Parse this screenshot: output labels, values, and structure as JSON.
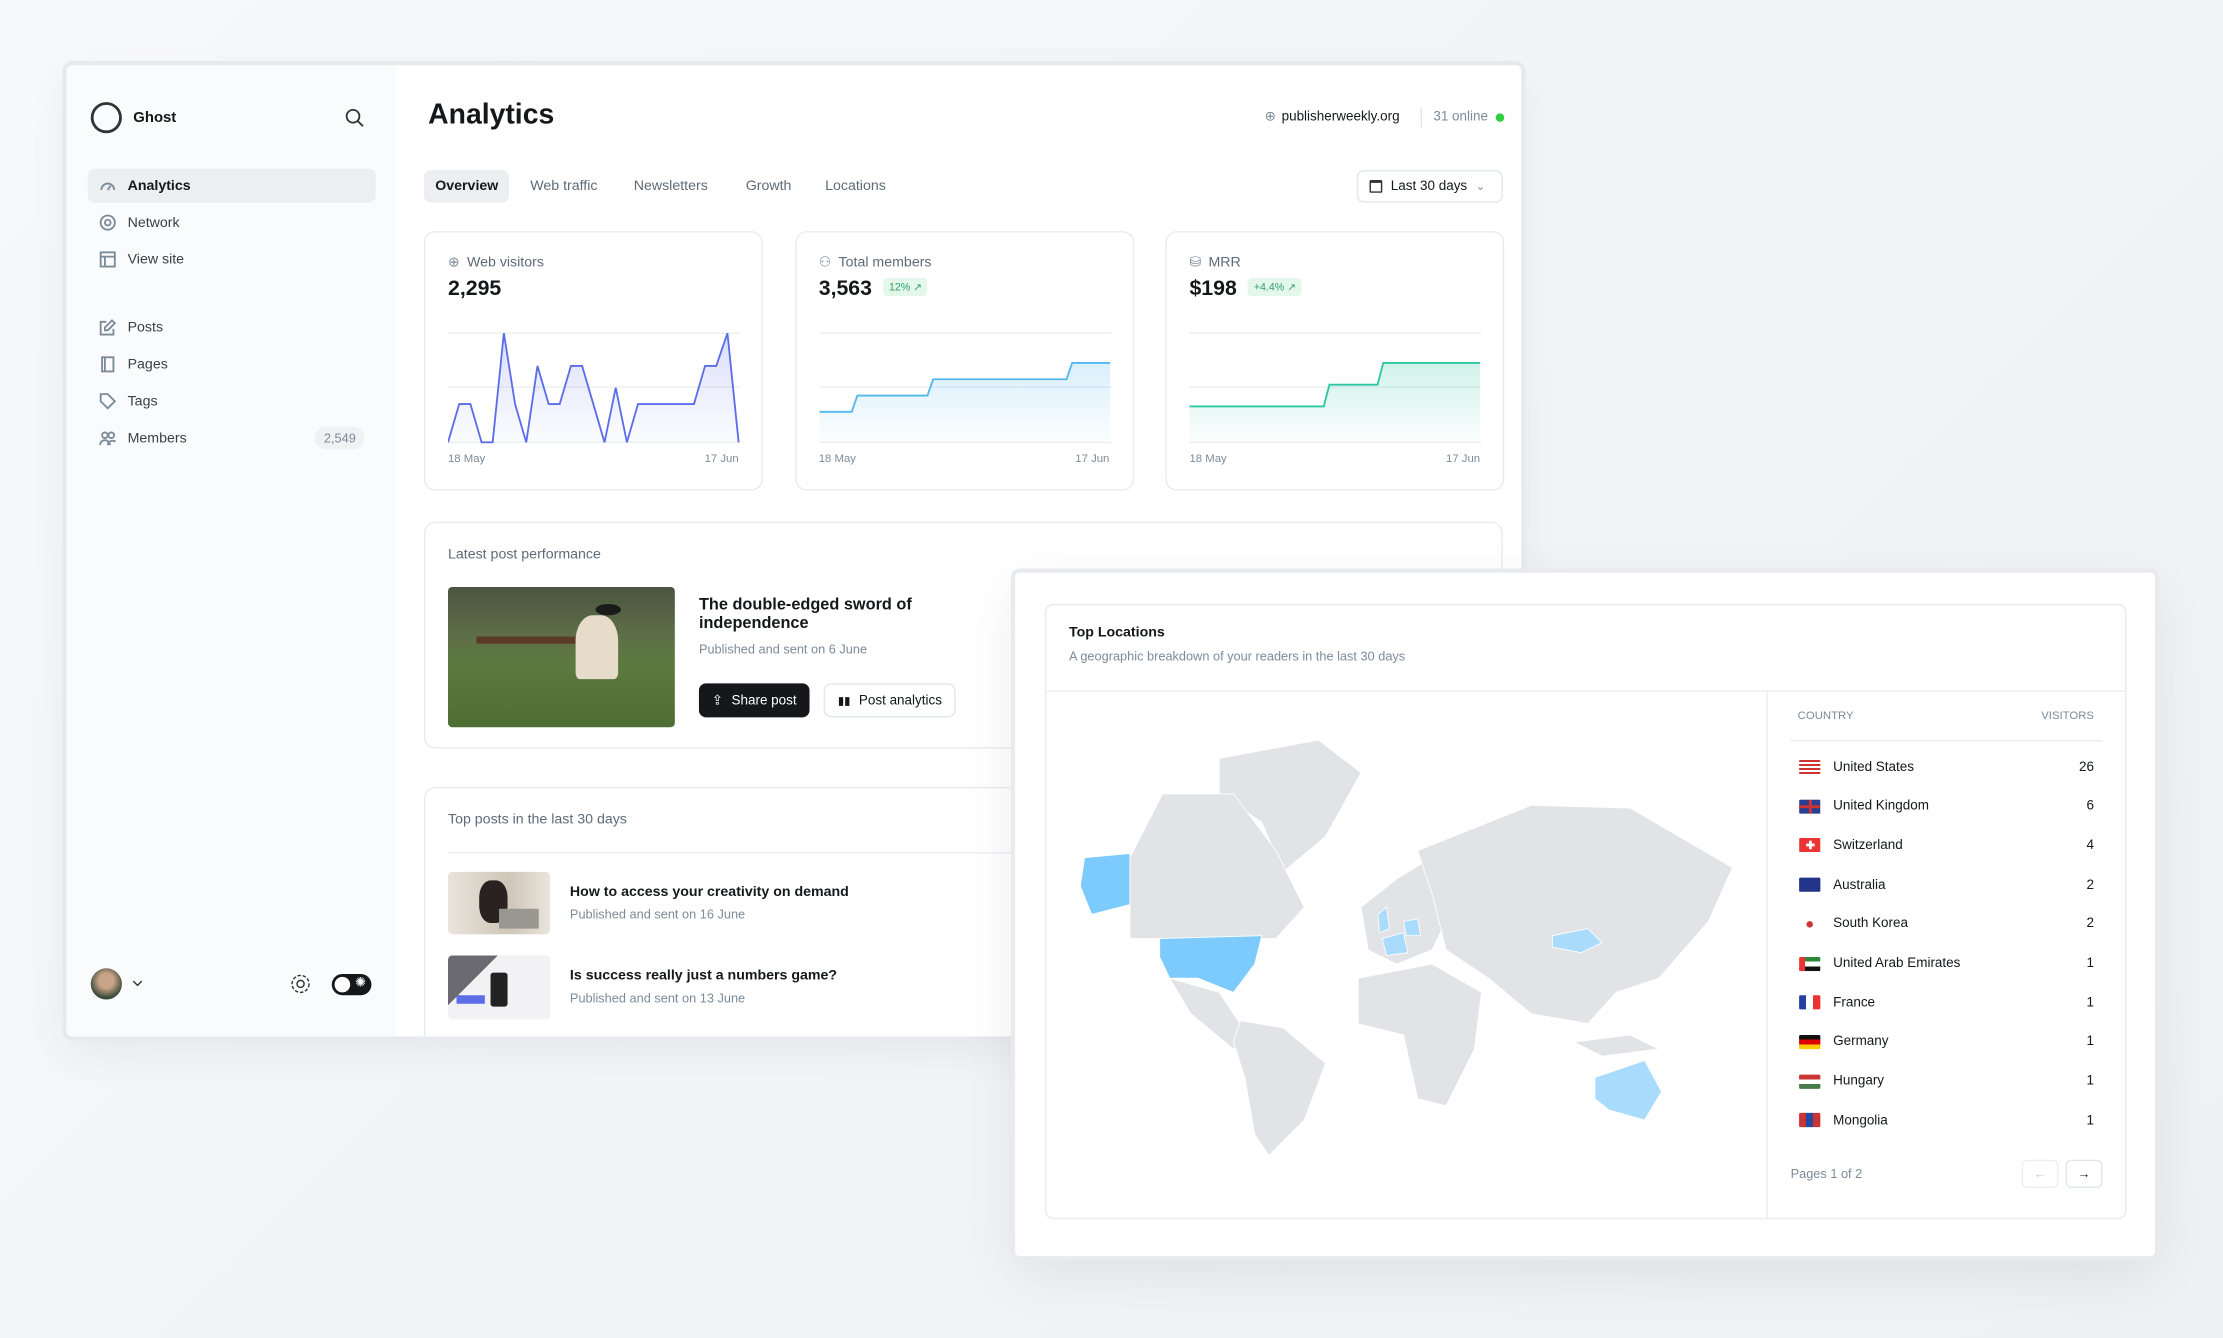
{
  "sidebar": {
    "brand": "Ghost",
    "items": [
      {
        "label": "Analytics",
        "icon": "gauge-icon",
        "active": true
      },
      {
        "label": "Network",
        "icon": "network-icon"
      },
      {
        "label": "View site",
        "icon": "layout-icon"
      },
      {
        "label": "Posts",
        "icon": "edit-icon"
      },
      {
        "label": "Pages",
        "icon": "page-icon"
      },
      {
        "label": "Tags",
        "icon": "tag-icon"
      },
      {
        "label": "Members",
        "icon": "members-icon",
        "count": "2,549"
      }
    ]
  },
  "header": {
    "title": "Analytics",
    "site": "publisherweekly.org",
    "online": "31 online",
    "online_color": "#30cf43"
  },
  "tabs": [
    {
      "label": "Overview",
      "active": true
    },
    {
      "label": "Web traffic"
    },
    {
      "label": "Newsletters"
    },
    {
      "label": "Growth"
    },
    {
      "label": "Locations"
    }
  ],
  "date_range": "Last 30 days",
  "kpis": [
    {
      "label": "Web visitors",
      "icon": "globe-icon",
      "value": "2,295",
      "badge": null,
      "color": "#5b6ee8"
    },
    {
      "label": "Total members",
      "icon": "user-icon",
      "value": "3,563",
      "badge": "12%",
      "color": "#54b8f0"
    },
    {
      "label": "MRR",
      "icon": "coins-icon",
      "value": "$198",
      "badge": "+4.4%",
      "color": "#2ec6a0"
    }
  ],
  "chart_data": [
    {
      "type": "area",
      "series": [
        {
          "values": [
            0,
            35,
            35,
            0,
            0,
            100,
            35,
            0,
            70,
            35,
            35,
            70,
            70,
            35,
            0,
            50,
            0,
            35,
            35,
            35,
            35,
            35,
            35,
            70,
            70,
            100,
            0
          ]
        }
      ],
      "x_ticks": [
        "18 May",
        "17 Jun"
      ],
      "grid": true
    },
    {
      "type": "area",
      "series": [
        {
          "values": [
            3,
            3,
            3,
            4,
            4,
            4,
            4,
            4,
            4,
            5,
            5,
            5,
            5,
            5,
            5,
            5,
            5,
            5,
            5,
            5,
            6,
            6,
            6,
            6
          ]
        }
      ],
      "x_ticks": [
        "18 May",
        "17 Jun"
      ],
      "grid": true
    },
    {
      "type": "area",
      "series": [
        {
          "values": [
            3,
            3,
            3,
            3,
            3,
            3,
            3,
            3,
            3,
            3,
            3,
            3,
            3,
            4,
            4,
            4,
            4,
            4,
            5,
            5,
            5,
            5,
            5,
            5,
            5,
            5,
            5,
            5
          ]
        }
      ],
      "x_ticks": [
        "18 May",
        "17 Jun"
      ],
      "grid": true
    }
  ],
  "latest": {
    "heading": "Latest post performance",
    "title": "The double-edged sword of independence",
    "meta": "Published and sent on 6 June",
    "share": "Share post",
    "analytics": "Post analytics"
  },
  "top_posts": {
    "heading": "Top posts in the last 30 days",
    "items": [
      {
        "title": "How to access your creativity on demand",
        "meta": "Published and sent on 16 June"
      },
      {
        "title": "Is success really just a numbers game?",
        "meta": "Published and sent on 13 June"
      }
    ]
  },
  "locations": {
    "title": "Top Locations",
    "subtitle": "A geographic breakdown of your readers in the last 30 days",
    "col_country": "COUNTRY",
    "col_visitors": "VISITORS",
    "highlight_color": "#7ccbfc",
    "rows": [
      {
        "country": "United States",
        "visitors": "26",
        "flag": "flag-us"
      },
      {
        "country": "United Kingdom",
        "visitors": "6",
        "flag": "flag-gb"
      },
      {
        "country": "Switzerland",
        "visitors": "4",
        "flag": "flag-ch"
      },
      {
        "country": "Australia",
        "visitors": "2",
        "flag": "flag-au"
      },
      {
        "country": "South Korea",
        "visitors": "2",
        "flag": "flag-kr"
      },
      {
        "country": "United Arab Emirates",
        "visitors": "1",
        "flag": "flag-ae"
      },
      {
        "country": "France",
        "visitors": "1",
        "flag": "flag-fr"
      },
      {
        "country": "Germany",
        "visitors": "1",
        "flag": "flag-de"
      },
      {
        "country": "Hungary",
        "visitors": "1",
        "flag": "flag-hu"
      },
      {
        "country": "Mongolia",
        "visitors": "1",
        "flag": "flag-mn"
      }
    ],
    "pagination": "Pages 1 of 2"
  }
}
